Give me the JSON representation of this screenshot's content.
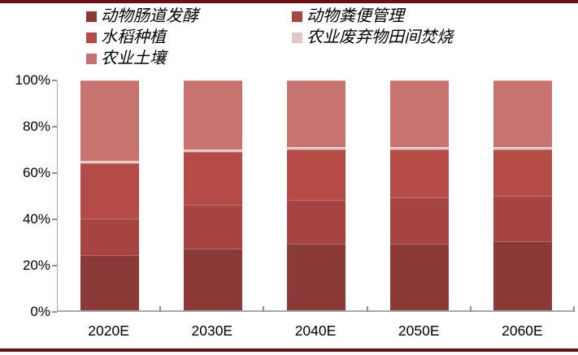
{
  "page": {
    "background": "#ffffff",
    "rule_color": "#6E0E12"
  },
  "chart_data": {
    "type": "bar",
    "subtype": "stacked-100-percent",
    "title": "",
    "xlabel": "",
    "ylabel": "",
    "categories": [
      "2020E",
      "2030E",
      "2040E",
      "2050E",
      "2060E"
    ],
    "series": [
      {
        "name": "动物肠道发酵",
        "color": "#8C3A37",
        "values": [
          24,
          27,
          29,
          29,
          30
        ]
      },
      {
        "name": "动物粪便管理",
        "color": "#A54440",
        "values": [
          16,
          19,
          19,
          20,
          20
        ]
      },
      {
        "name": "水稻种植",
        "color": "#B54B47",
        "values": [
          24,
          23,
          22,
          21,
          20
        ]
      },
      {
        "name": "农业废弃物田间焚烧",
        "color": "#E4C6C5",
        "values": [
          1,
          1,
          1,
          1,
          1
        ]
      },
      {
        "name": "农业土壤",
        "color": "#C77471",
        "values": [
          35,
          30,
          29,
          29,
          29
        ]
      }
    ],
    "y_ticks": [
      "0%",
      "20%",
      "40%",
      "60%",
      "80%",
      "100%"
    ],
    "ylim": [
      0,
      100
    ],
    "grid": false,
    "legend_position": "top",
    "legend_columns": 2,
    "axis_color": "#a8a8a8",
    "stack_order": "bottom-to-top"
  }
}
